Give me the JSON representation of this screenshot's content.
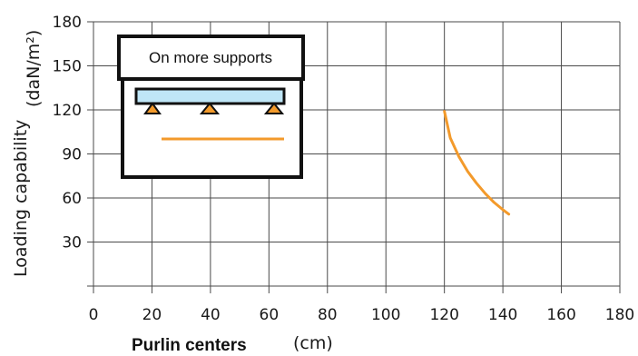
{
  "chart_data": {
    "type": "line",
    "xlabel": "Purlin centers",
    "xunit": "(cm)",
    "ylabel": "Loading capability",
    "yunit": "(daN/m²)",
    "xlim": [
      0,
      180
    ],
    "ylim": [
      0,
      180
    ],
    "xticks": [
      0,
      20,
      40,
      60,
      80,
      100,
      120,
      140,
      160,
      180
    ],
    "yticks": [
      30,
      60,
      90,
      120,
      150,
      180
    ],
    "grid": true,
    "series": [
      {
        "name": "On more supports",
        "color": "#f39a2b",
        "x": [
          120,
          122,
          125,
          128,
          131,
          134,
          137,
          140,
          142
        ],
        "y": [
          119,
          101,
          88,
          78,
          70,
          63,
          57,
          52,
          49
        ]
      }
    ],
    "legend": {
      "placement": "top-left",
      "title": "On more supports",
      "icon": "continuous-beam-on-three-supports",
      "beam_color": "#bfe6f7",
      "support_color": "#f39a2b"
    }
  }
}
